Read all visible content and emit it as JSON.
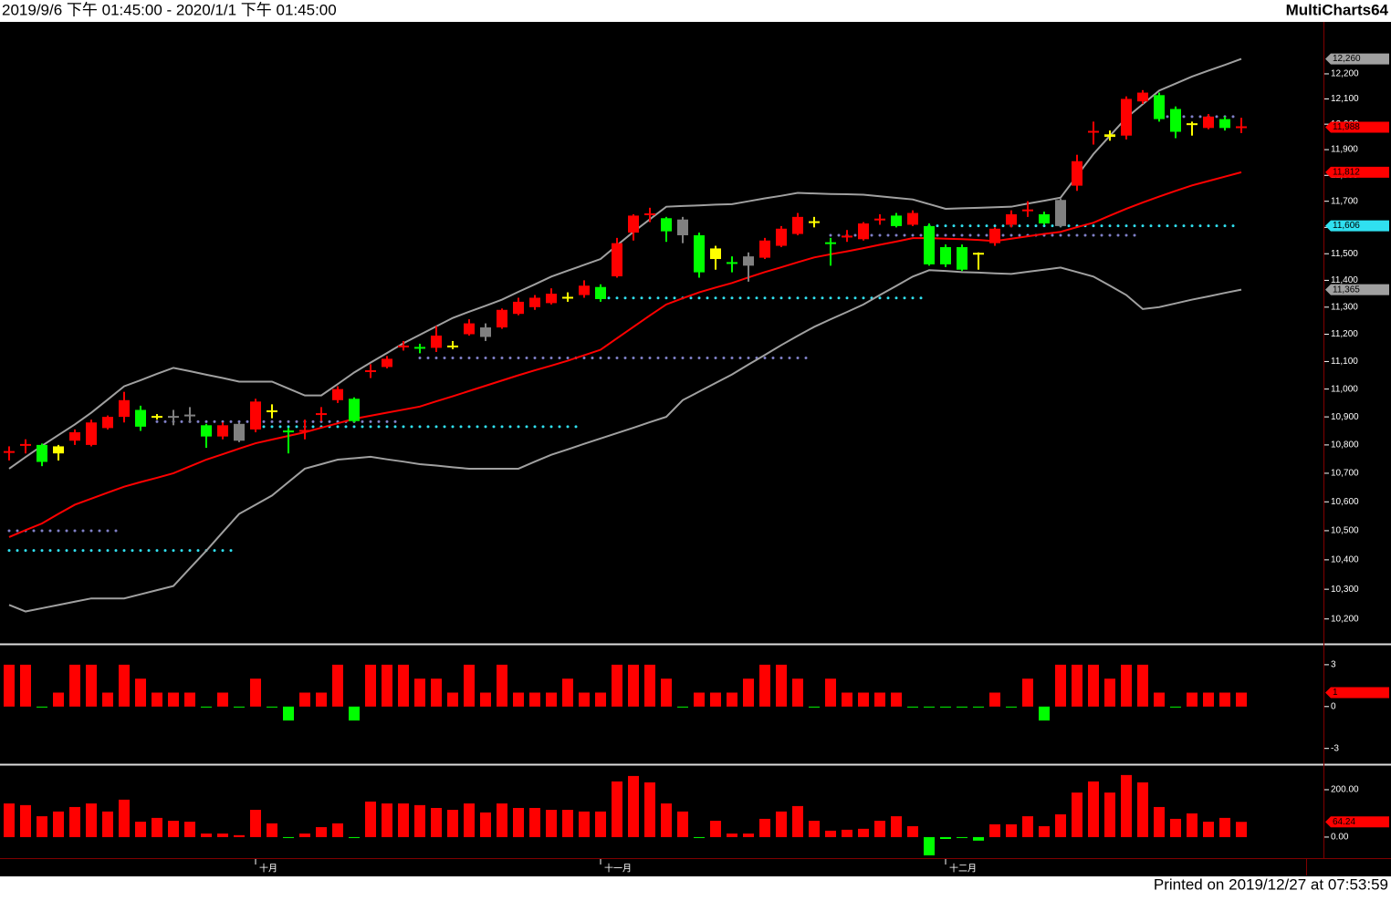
{
  "header": {
    "title": "2019/9/6 下午 01:45:00 - 2020/1/1 下午 01:45:00",
    "app": "MultiCharts64"
  },
  "footer": {
    "printed": "Printed on 2019/12/27 at 07:53:59"
  },
  "chart_data": [
    {
      "type": "candlestick",
      "log": true,
      "ylim": [
        10120,
        12410
      ],
      "yticks": [
        {
          "value": 10200,
          "label": "10,200"
        },
        {
          "value": 10300,
          "label": "10,300"
        },
        {
          "value": 10400,
          "label": "10,400"
        },
        {
          "value": 10500,
          "label": "10,500"
        },
        {
          "value": 10600,
          "label": "10,600"
        },
        {
          "value": 10700,
          "label": "10,700"
        },
        {
          "value": 10800,
          "label": "10,800"
        },
        {
          "value": 10900,
          "label": "10,900"
        },
        {
          "value": 11000,
          "label": "11,000"
        },
        {
          "value": 11100,
          "label": "11,100"
        },
        {
          "value": 11200,
          "label": "11,200"
        },
        {
          "value": 11300,
          "label": "11,300"
        },
        {
          "value": 11400,
          "label": "11,400"
        },
        {
          "value": 11500,
          "label": "11,500"
        },
        {
          "value": 11600,
          "label": "11,600"
        },
        {
          "value": 11700,
          "label": "11,700"
        },
        {
          "value": 11800,
          "label": "11,800"
        },
        {
          "value": 11900,
          "label": "11,900"
        },
        {
          "value": 12000,
          "label": "12,000"
        },
        {
          "value": 12100,
          "label": "12,100"
        },
        {
          "value": 12200,
          "label": "12,200"
        }
      ],
      "categories": [
        null,
        null,
        null,
        null,
        null,
        null,
        null,
        null,
        null,
        null,
        null,
        null,
        null,
        null,
        null,
        "十月",
        null,
        null,
        null,
        null,
        null,
        null,
        null,
        null,
        null,
        null,
        null,
        null,
        null,
        null,
        null,
        null,
        null,
        null,
        null,
        null,
        "十一月",
        null,
        null,
        null,
        null,
        null,
        null,
        null,
        null,
        null,
        null,
        null,
        null,
        null,
        null,
        null,
        null,
        null,
        null,
        null,
        null,
        "十二月",
        null,
        null,
        null,
        null,
        null,
        null,
        null,
        null,
        null,
        null,
        null,
        null,
        null,
        null,
        null,
        null,
        null,
        null
      ],
      "open": [
        10770,
        10795,
        10800,
        10770,
        10815,
        10800,
        10860,
        10900,
        10925,
        10900,
        10900,
        10905,
        10870,
        10830,
        10875,
        10855,
        10920,
        10848,
        10850,
        10910,
        10960,
        10965,
        11065,
        11080,
        11155,
        11150,
        11150,
        11155,
        11200,
        11225,
        11225,
        11275,
        11300,
        11315,
        11335,
        11345,
        11375,
        11415,
        11580,
        11650,
        11635,
        11630,
        11570,
        11520,
        11465,
        11490,
        11485,
        11530,
        11575,
        11620,
        11540,
        11565,
        11555,
        11630,
        11645,
        11610,
        11605,
        11525,
        11525,
        11500,
        11540,
        11610,
        11665,
        11650,
        11605,
        11760,
        11970,
        11960,
        11955,
        12090,
        12115,
        12060,
        12000,
        11985,
        12020,
        11985
      ],
      "high": [
        10795,
        10820,
        10805,
        10800,
        10855,
        10890,
        10905,
        10990,
        10940,
        10910,
        10925,
        10935,
        10875,
        10880,
        10880,
        10965,
        10945,
        10860,
        10890,
        10935,
        11010,
        10970,
        11090,
        11120,
        11175,
        11165,
        11230,
        11175,
        11255,
        11240,
        11295,
        11335,
        11345,
        11370,
        11355,
        11400,
        11385,
        11560,
        11650,
        11675,
        11640,
        11640,
        11580,
        11530,
        11490,
        11505,
        11560,
        11605,
        11655,
        11640,
        11560,
        11590,
        11620,
        11650,
        11655,
        11665,
        11615,
        11535,
        11535,
        11505,
        11600,
        11665,
        11700,
        11660,
        11710,
        11880,
        12010,
        11975,
        12110,
        12135,
        12125,
        12070,
        12010,
        12040,
        12030,
        12025
      ],
      "low": [
        10745,
        10770,
        10725,
        10745,
        10800,
        10795,
        10855,
        10880,
        10850,
        10890,
        10870,
        10880,
        10790,
        10820,
        10810,
        10845,
        10895,
        10770,
        10820,
        10885,
        10950,
        10880,
        11040,
        11075,
        11140,
        11130,
        11135,
        11145,
        11195,
        11175,
        11220,
        11270,
        11290,
        11310,
        11320,
        11335,
        11320,
        11410,
        11550,
        11620,
        11545,
        11540,
        11410,
        11440,
        11430,
        11395,
        11480,
        11525,
        11570,
        11600,
        11455,
        11545,
        11550,
        11610,
        11600,
        11605,
        11455,
        11450,
        11435,
        11440,
        11530,
        11600,
        11640,
        11610,
        11600,
        11740,
        11920,
        11935,
        11940,
        12080,
        12010,
        11945,
        11955,
        11980,
        11975,
        11965
      ],
      "close": [
        10775,
        10800,
        10740,
        10795,
        10845,
        10880,
        10900,
        10960,
        10865,
        10900,
        10900,
        10905,
        10830,
        10870,
        10815,
        10955,
        10920,
        10845,
        10850,
        10910,
        11000,
        10885,
        11065,
        11110,
        11155,
        11150,
        11195,
        11155,
        11240,
        11190,
        11290,
        11320,
        11335,
        11350,
        11330,
        11380,
        11330,
        11540,
        11645,
        11650,
        11585,
        11570,
        11430,
        11480,
        11465,
        11455,
        11550,
        11595,
        11640,
        11620,
        11540,
        11565,
        11615,
        11630,
        11605,
        11655,
        11460,
        11460,
        11440,
        11495,
        11595,
        11650,
        11665,
        11615,
        11705,
        11855,
        11970,
        11950,
        12100,
        12125,
        12020,
        11970,
        12000,
        12030,
        11985,
        11988
      ],
      "close_label": "11,988",
      "colors": [
        "#ff0000",
        "#ff0000",
        "#00ff00",
        "#ffff00",
        "#ff0000",
        "#ff0000",
        "#ff0000",
        "#ff0000",
        "#00ff00",
        "#ffff00",
        "#808080",
        "#808080",
        "#00ff00",
        "#ff0000",
        "#808080",
        "#ff0000",
        "#ffff00",
        "#00ff00",
        "#ff0000",
        "#ff0000",
        "#ff0000",
        "#00ff00",
        "#ff0000",
        "#ff0000",
        "#ff0000",
        "#00ff00",
        "#ff0000",
        "#ffff00",
        "#ff0000",
        "#808080",
        "#ff0000",
        "#ff0000",
        "#ff0000",
        "#ff0000",
        "#ffff00",
        "#ff0000",
        "#00ff00",
        "#ff0000",
        "#ff0000",
        "#ff0000",
        "#00ff00",
        "#808080",
        "#00ff00",
        "#ffff00",
        "#00ff00",
        "#808080",
        "#ff0000",
        "#ff0000",
        "#ff0000",
        "#ffff00",
        "#00ff00",
        "#ff0000",
        "#ff0000",
        "#ff0000",
        "#00ff00",
        "#ff0000",
        "#00ff00",
        "#00ff00",
        "#00ff00",
        "#ffff00",
        "#ff0000",
        "#ff0000",
        "#ff0000",
        "#00ff00",
        "#808080",
        "#ff0000",
        "#ff0000",
        "#ffff00",
        "#ff0000",
        "#ff0000",
        "#00ff00",
        "#00ff00",
        "#ffff00",
        "#ff0000",
        "#00ff00",
        "#ff0000"
      ],
      "lines": [
        {
          "color": "#a0a0a0",
          "last_label": "12,260",
          "values": [
            10716,
            10757,
            10797,
            10835,
            10873,
            10915,
            10962,
            11010,
            11032,
            11055,
            11077,
            11065,
            11052,
            11040,
            11027,
            11027,
            11027,
            11002,
            10977,
            10977,
            11018,
            11060,
            11096,
            11131,
            11167,
            11198,
            11229,
            11260,
            11283,
            11305,
            11328,
            11357,
            11385,
            11414,
            11436,
            11458,
            11480,
            11532,
            11583,
            11631,
            11679,
            11682,
            11684,
            11687,
            11689,
            11700,
            11711,
            11721,
            11732,
            11730,
            11728,
            11727,
            11725,
            11719,
            11713,
            11707,
            11689,
            11671,
            11673,
            11675,
            11677,
            11679,
            11691,
            11702,
            11714,
            11798,
            11883,
            11954,
            12025,
            12079,
            12133,
            12161,
            12189,
            12213,
            12236,
            12260
          ]
        },
        {
          "color": "#ff0000",
          "last_label": "11,812",
          "values": [
            10478,
            10502,
            10525,
            10558,
            10590,
            10611,
            10632,
            10653,
            10669,
            10684,
            10700,
            10724,
            10748,
            10767,
            10787,
            10806,
            10819,
            10832,
            10845,
            10861,
            10877,
            10893,
            10904,
            10915,
            10926,
            10937,
            10956,
            10974,
            10993,
            11012,
            11031,
            11050,
            11068,
            11085,
            11103,
            11123,
            11143,
            11185,
            11227,
            11269,
            11310,
            11333,
            11355,
            11373,
            11390,
            11411,
            11431,
            11449,
            11468,
            11486,
            11498,
            11509,
            11521,
            11534,
            11546,
            11559,
            11559,
            11557,
            11555,
            11552,
            11548,
            11557,
            11566,
            11575,
            11583,
            11601,
            11618,
            11645,
            11671,
            11695,
            11718,
            11740,
            11761,
            11778,
            11795,
            11812
          ]
        },
        {
          "color": "#a0a0a0",
          "last_label": "11,365",
          "values": [
            10247,
            10225,
            10236,
            10247,
            10258,
            10269,
            10269,
            10269,
            10283,
            10297,
            10311,
            10371,
            10431,
            10495,
            10558,
            10590,
            10622,
            10669,
            10716,
            10732,
            10748,
            10753,
            10758,
            10749,
            10741,
            10732,
            10727,
            10721,
            10716,
            10716,
            10716,
            10716,
            10741,
            10765,
            10784,
            10804,
            10823,
            10842,
            10861,
            10881,
            10900,
            10960,
            10991,
            11022,
            11053,
            11089,
            11124,
            11160,
            11194,
            11227,
            11255,
            11282,
            11310,
            11345,
            11379,
            11414,
            11438,
            11435,
            11431,
            11429,
            11426,
            11424,
            11432,
            11440,
            11448,
            11431,
            11414,
            11380,
            11345,
            11293,
            11300,
            11314,
            11328,
            11340,
            11353,
            11365
          ]
        }
      ],
      "levels": [
        {
          "value": 10500,
          "start": 0,
          "end": 7,
          "color": "#8080c8"
        },
        {
          "value": 10432,
          "start": 0,
          "end": 14,
          "color": "#30e0f0"
        },
        {
          "value": 10883,
          "start": 9,
          "end": 24,
          "color": "#8080c8"
        },
        {
          "value": 10865,
          "start": 15,
          "end": 35,
          "color": "#30e0f0"
        },
        {
          "value": 11113,
          "start": 25,
          "end": 49,
          "color": "#8080c8"
        },
        {
          "value": 11334,
          "start": 36,
          "end": 56,
          "color": "#30e0f0"
        },
        {
          "value": 11570,
          "start": 50,
          "end": 69,
          "color": "#8080c8"
        },
        {
          "value": 11606,
          "start": 56,
          "end": 75,
          "color": "#30e0f0",
          "value_label": "11,606"
        },
        {
          "value": 12030,
          "start": 70,
          "end": 75,
          "color": "#8080c8"
        }
      ]
    },
    {
      "type": "bar",
      "ylim": [
        -4,
        4.3
      ],
      "yticks": [
        3,
        0,
        -3
      ],
      "color": "#ff0000",
      "negative_color": "#00ff00",
      "last_label": "1",
      "values": [
        3,
        3,
        0,
        1,
        3,
        3,
        1,
        3,
        2,
        1,
        1,
        1,
        0,
        1,
        0,
        2,
        0,
        -1,
        1,
        1,
        3,
        -1,
        3,
        3,
        3,
        2,
        2,
        1,
        3,
        1,
        3,
        1,
        1,
        1,
        2,
        1,
        1,
        3,
        3,
        3,
        2,
        0,
        1,
        1,
        1,
        2,
        3,
        3,
        2,
        0,
        2,
        1,
        1,
        1,
        1,
        0,
        0,
        0,
        0,
        0,
        1,
        0,
        2,
        -1,
        3,
        3,
        3,
        2,
        3,
        3,
        1,
        0,
        1,
        1,
        1,
        1
      ]
    },
    {
      "type": "bar",
      "ylim": [
        -85,
        300
      ],
      "yticks": [
        {
          "value": 200,
          "label": "200.00"
        },
        {
          "value": 0,
          "label": "0.00"
        }
      ],
      "color": "#ff0000",
      "negative_color": "#00ff00",
      "last_label": "64.24",
      "values": [
        142,
        135,
        88,
        108,
        127,
        142,
        108,
        158,
        65,
        81,
        69,
        65,
        15,
        15,
        8,
        115,
        58,
        0,
        15,
        42,
        58,
        0,
        150,
        142,
        142,
        135,
        123,
        115,
        142,
        104,
        142,
        123,
        123,
        115,
        115,
        108,
        108,
        235,
        258,
        231,
        142,
        108,
        0,
        69,
        15,
        15,
        77,
        108,
        131,
        69,
        27,
        31,
        35,
        69,
        88,
        46,
        -77,
        -8,
        -2,
        -15,
        54,
        54,
        88,
        46,
        96,
        188,
        235,
        188,
        262,
        231,
        127,
        77,
        100,
        65,
        81,
        64.24
      ]
    }
  ]
}
